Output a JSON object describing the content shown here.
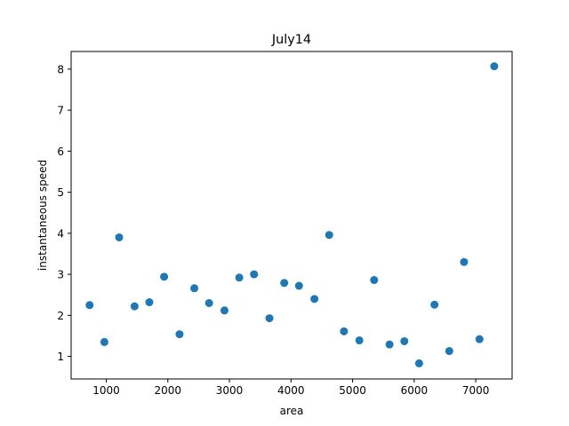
{
  "chart_data": {
    "type": "scatter",
    "title": "July14",
    "xlabel": "area",
    "ylabel": "instantaneous speed",
    "xlim": [
      430,
      7590
    ],
    "ylim": [
      0.45,
      8.43
    ],
    "xticks": [
      1000,
      2000,
      3000,
      4000,
      5000,
      6000,
      7000
    ],
    "yticks": [
      1,
      2,
      3,
      4,
      5,
      6,
      7,
      8
    ],
    "grid": false,
    "marker_color": "#1f77b4",
    "series": [
      {
        "x": [
          730,
          970,
          1210,
          1460,
          1700,
          1940,
          2190,
          2430,
          2670,
          2920,
          3160,
          3400,
          3650,
          3890,
          4130,
          4380,
          4620,
          4860,
          5110,
          5350,
          5600,
          5840,
          6080,
          6330,
          6570,
          6810,
          7060,
          7300
        ],
        "y": [
          2.25,
          1.35,
          3.9,
          2.22,
          2.32,
          2.94,
          1.54,
          2.66,
          2.3,
          2.12,
          2.92,
          3.0,
          1.93,
          2.79,
          2.72,
          2.4,
          3.96,
          1.61,
          1.39,
          2.86,
          1.29,
          1.37,
          0.83,
          2.26,
          1.13,
          3.3,
          1.42,
          8.07
        ]
      }
    ]
  }
}
